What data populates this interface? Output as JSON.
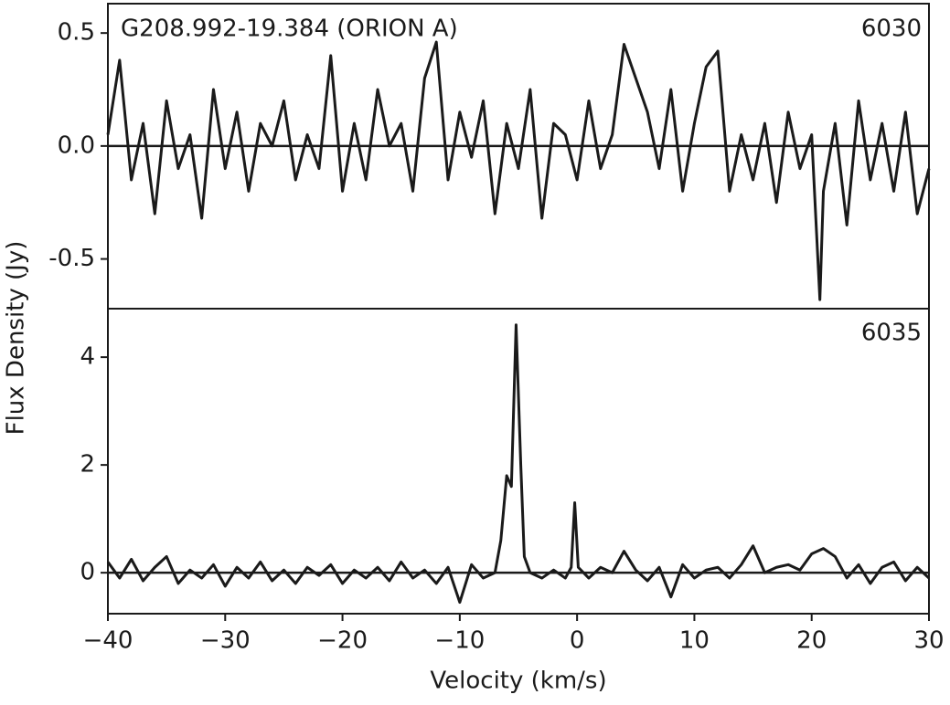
{
  "chart_data": [
    {
      "type": "line",
      "title": "G208.992-19.384 (ORION A)",
      "label": "6030",
      "ylabel": "Flux Density (Jy)",
      "x": [
        -40,
        -39,
        -38,
        -37,
        -36,
        -35,
        -34,
        -33,
        -32,
        -31,
        -30,
        -29,
        -28,
        -27,
        -26,
        -25,
        -24,
        -23,
        -22,
        -21,
        -20,
        -19,
        -18,
        -17,
        -16,
        -15,
        -14,
        -13,
        -12,
        -11,
        -10,
        -9,
        -8,
        -7,
        -6,
        -5,
        -4,
        -3,
        -2,
        -1,
        0,
        1,
        2,
        3,
        4,
        5,
        6,
        7,
        8,
        9,
        10,
        11,
        12,
        13,
        14,
        15,
        16,
        17,
        18,
        19,
        20,
        20.7,
        21,
        22,
        23,
        24,
        25,
        26,
        27,
        28,
        29,
        30
      ],
      "series": [
        {
          "color": "#1a1a1a",
          "values": [
            0.05,
            0.38,
            -0.15,
            0.1,
            -0.3,
            0.2,
            -0.1,
            0.05,
            -0.32,
            0.25,
            -0.1,
            0.15,
            -0.2,
            0.1,
            0.0,
            0.2,
            -0.15,
            0.05,
            -0.1,
            0.4,
            -0.2,
            0.1,
            -0.15,
            0.25,
            0.0,
            0.1,
            -0.2,
            0.3,
            0.46,
            -0.15,
            0.15,
            -0.05,
            0.2,
            -0.3,
            0.1,
            -0.1,
            0.25,
            -0.32,
            0.1,
            0.05,
            -0.15,
            0.2,
            -0.1,
            0.05,
            0.45,
            0.3,
            0.15,
            -0.1,
            0.25,
            -0.2,
            0.1,
            0.35,
            0.42,
            -0.2,
            0.05,
            -0.15,
            0.1,
            -0.25,
            0.15,
            -0.1,
            0.05,
            -0.68,
            -0.2,
            0.1,
            -0.35,
            0.2,
            -0.15,
            0.1,
            -0.2,
            0.15,
            -0.3,
            -0.1
          ]
        }
      ],
      "reference_line": 0,
      "ylim": [
        -0.72,
        0.63
      ],
      "yticks": [
        0.5,
        {
          "value": 0,
          "label": "0.0"
        },
        {
          "value": -0.5,
          "label": "-0.5"
        }
      ]
    },
    {
      "type": "line",
      "label": "6035",
      "xlabel": "Velocity (km/s)",
      "x": [
        -40,
        -39,
        -38,
        -37,
        -36,
        -35,
        -34,
        -33,
        -32,
        -31,
        -30,
        -29,
        -28,
        -27,
        -26,
        -25,
        -24,
        -23,
        -22,
        -21,
        -20,
        -19,
        -18,
        -17,
        -16,
        -15,
        -14,
        -13,
        -12,
        -11,
        -10,
        -9,
        -8,
        -7,
        -6.5,
        -6,
        -5.6,
        -5.2,
        -4.8,
        -4.5,
        -4,
        -3,
        -2,
        -1,
        -0.5,
        -0.2,
        0.1,
        1,
        2,
        3,
        4,
        5,
        6,
        7,
        8,
        9,
        10,
        11,
        12,
        13,
        14,
        15,
        16,
        17,
        18,
        19,
        20,
        21,
        22,
        23,
        24,
        25,
        26,
        27,
        28,
        29,
        30
      ],
      "series": [
        {
          "color": "#1a1a1a",
          "values": [
            0.2,
            -0.1,
            0.25,
            -0.15,
            0.1,
            0.3,
            -0.2,
            0.05,
            -0.1,
            0.15,
            -0.25,
            0.1,
            -0.1,
            0.2,
            -0.15,
            0.05,
            -0.2,
            0.1,
            -0.05,
            0.15,
            -0.2,
            0.05,
            -0.1,
            0.1,
            -0.15,
            0.2,
            -0.1,
            0.05,
            -0.2,
            0.1,
            -0.55,
            0.15,
            -0.1,
            0.0,
            0.6,
            1.8,
            1.6,
            4.6,
            2.0,
            0.3,
            0.0,
            -0.1,
            0.05,
            -0.1,
            0.1,
            1.3,
            0.1,
            -0.1,
            0.1,
            0.0,
            0.4,
            0.05,
            -0.15,
            0.1,
            -0.45,
            0.15,
            -0.1,
            0.05,
            0.1,
            -0.1,
            0.15,
            0.5,
            0.0,
            0.1,
            0.15,
            0.05,
            0.35,
            0.45,
            0.3,
            -0.1,
            0.15,
            -0.2,
            0.1,
            0.2,
            -0.15,
            0.1,
            -0.1
          ]
        }
      ],
      "reference_line": 0,
      "ylim": [
        -0.76,
        4.9
      ],
      "yticks": [
        0,
        2,
        4
      ],
      "xlim": [
        -40,
        30
      ],
      "xticks": [
        {
          "value": -40,
          "label": "−40"
        },
        {
          "value": -30,
          "label": "−30"
        },
        {
          "value": -20,
          "label": "−20"
        },
        {
          "value": -10,
          "label": "−10"
        },
        0,
        10,
        20,
        30
      ]
    }
  ]
}
